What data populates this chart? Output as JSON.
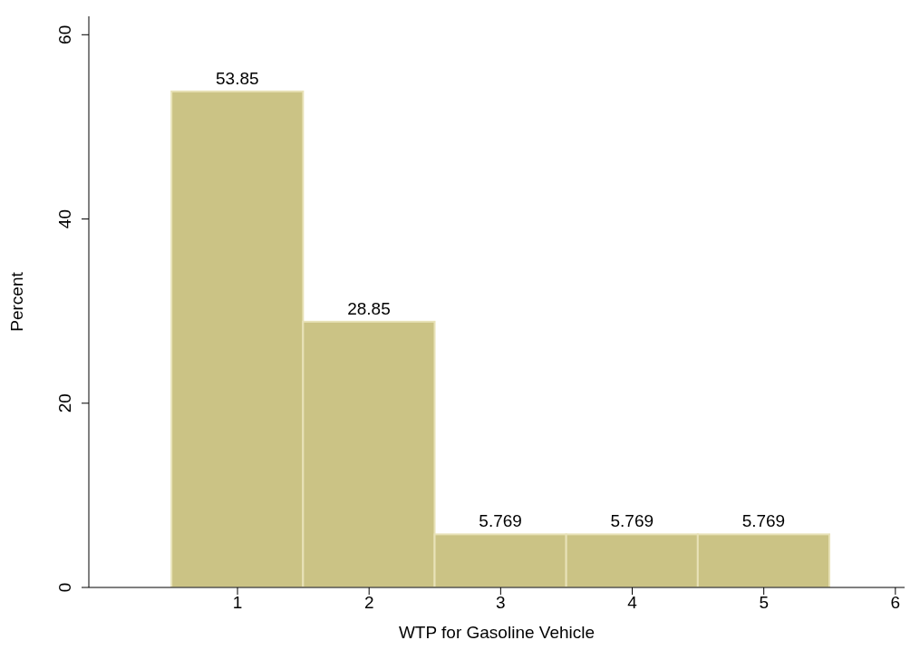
{
  "chart_data": {
    "type": "histogram",
    "xlabel": "WTP for Gasoline Vehicle",
    "ylabel": "Percent",
    "bins": [
      0.5,
      1.5,
      2.5,
      3.5,
      4.5,
      5.5
    ],
    "values": [
      53.85,
      28.85,
      5.769,
      5.769,
      5.769
    ],
    "color": "#cbc385",
    "xlim": [
      -0.13,
      6.07
    ],
    "xticks": [
      1,
      2,
      3,
      4,
      5,
      6
    ],
    "ylim": [
      0,
      62
    ],
    "yticks": [
      0,
      20,
      40,
      60
    ],
    "data_labels": true,
    "grid": false,
    "legend": false
  }
}
